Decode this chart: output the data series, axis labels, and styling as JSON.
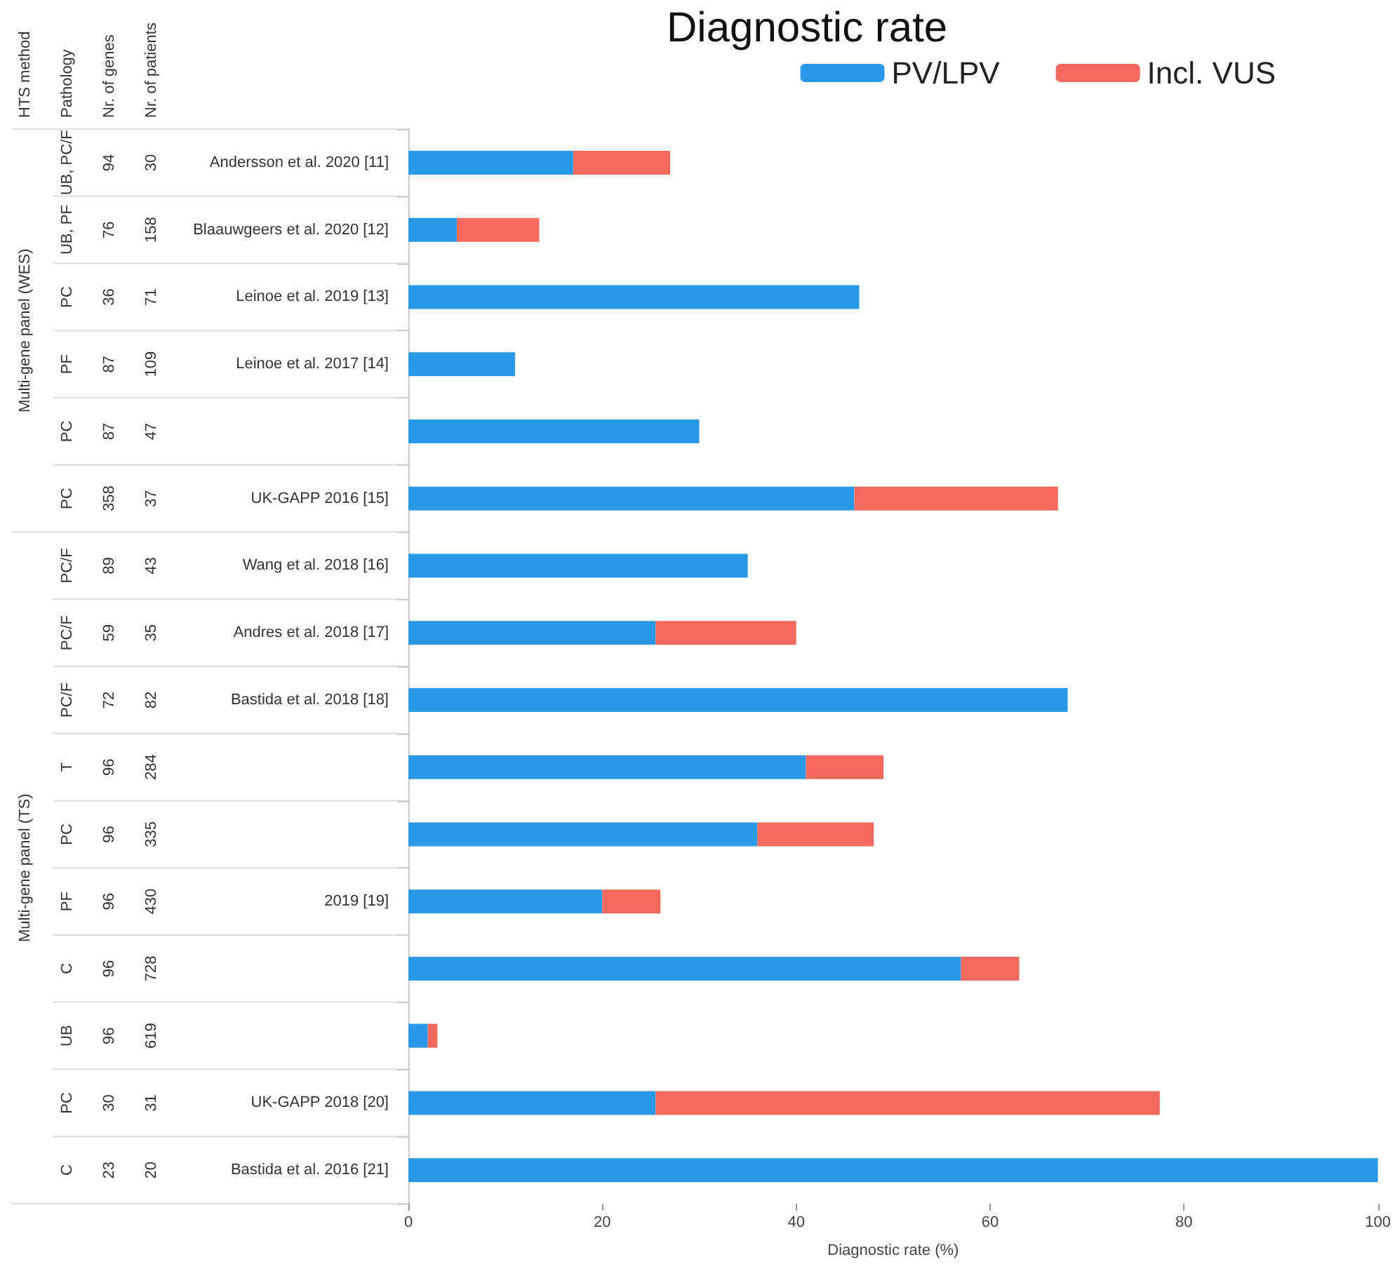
{
  "chart_data": {
    "type": "bar",
    "orientation": "horizontal",
    "stacked": true,
    "title": "Diagnostic rate",
    "xlabel": "Diagnostic rate (%)",
    "categories": [
      "Andersson et al. 2020 [11]",
      "Blaauwgeers et al. 2020 [12]",
      "Leinoe et al. 2019 [13]",
      "Leinoe et al. 2017 [14]",
      null,
      "UK-GAPP 2016 [15]",
      "Wang et al. 2018 [16]",
      "Andres et al. 2018 [17]",
      "Bastida et al. 2018 [18]",
      null,
      null,
      "2019 [19]",
      null,
      null,
      "UK-GAPP 2018 [20]",
      "Bastida et al. 2016 [21]"
    ],
    "series": [
      {
        "name": "PV/LPV",
        "color": "#2b98e6",
        "values": [
          17,
          5,
          46.5,
          11,
          30,
          46,
          35,
          25.5,
          68,
          41,
          36,
          20,
          57,
          2,
          25.5,
          100
        ]
      },
      {
        "name": "Incl. VUS",
        "color": "#f2695e",
        "values": [
          10,
          8.5,
          null,
          null,
          null,
          21,
          null,
          14.5,
          null,
          8,
          12,
          6,
          6,
          1,
          52,
          null
        ]
      }
    ],
    "xlim": [
      0,
      100
    ],
    "xticks": [
      0,
      20,
      40,
      60,
      80,
      100
    ],
    "grid": false,
    "legend": "top right",
    "annotations": [
      "HTS method",
      "Pathology",
      "Nr. of genes",
      "Nr. of patients",
      "Multi-gene panel (WES)",
      "Multi-gene panel (TS)",
      "UB, PC/F",
      "94",
      "30",
      "UB, PF",
      "76",
      "158",
      "PC",
      "36",
      "71",
      "PF",
      "87",
      "109",
      "PC",
      "87",
      "47",
      "PC",
      "358",
      "37",
      "PC/F",
      "89",
      "43",
      "PC/F",
      "59",
      "35",
      "PC/F",
      "72",
      "82",
      "T",
      "96",
      "284",
      "PC",
      "96",
      "335",
      "PF",
      "96",
      "430",
      "C",
      "96",
      "728",
      "UB",
      "96",
      "619",
      "PC",
      "30",
      "31",
      "C",
      "23",
      "20"
    ]
  }
}
